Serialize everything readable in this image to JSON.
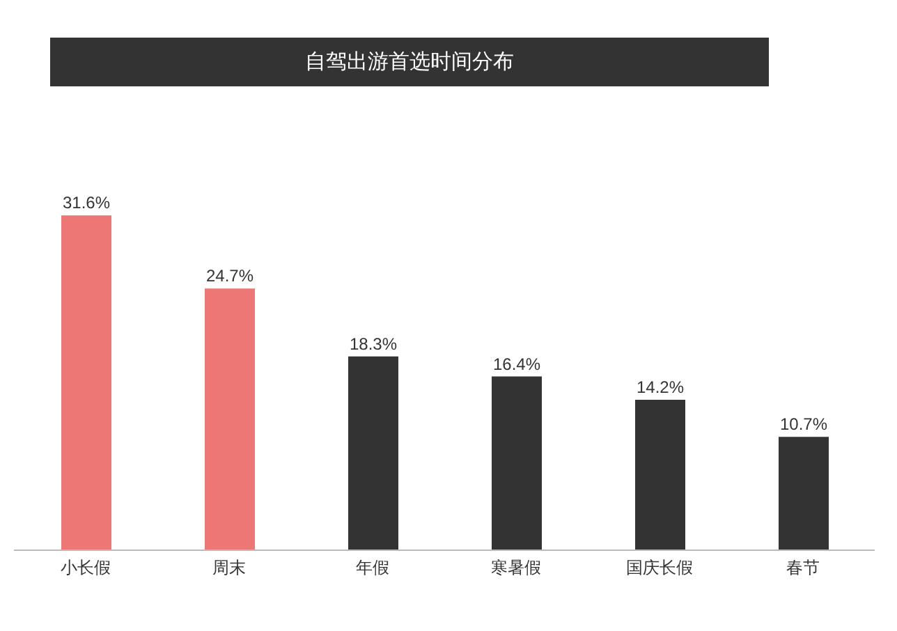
{
  "chart_data": {
    "type": "bar",
    "title": "自驾出游首选时间分布",
    "categories": [
      "小长假",
      "周末",
      "年假",
      "寒暑假",
      "国庆长假",
      "春节"
    ],
    "values": [
      31.6,
      24.7,
      18.3,
      16.4,
      14.2,
      10.7
    ],
    "colors": [
      "#ec7774",
      "#ec7774",
      "#333333",
      "#333333",
      "#333333",
      "#333333"
    ],
    "value_labels": [
      "31.6%",
      "24.7%",
      "18.3%",
      "16.4%",
      "14.2%",
      "10.7%"
    ],
    "legend": false,
    "grid": false
  }
}
